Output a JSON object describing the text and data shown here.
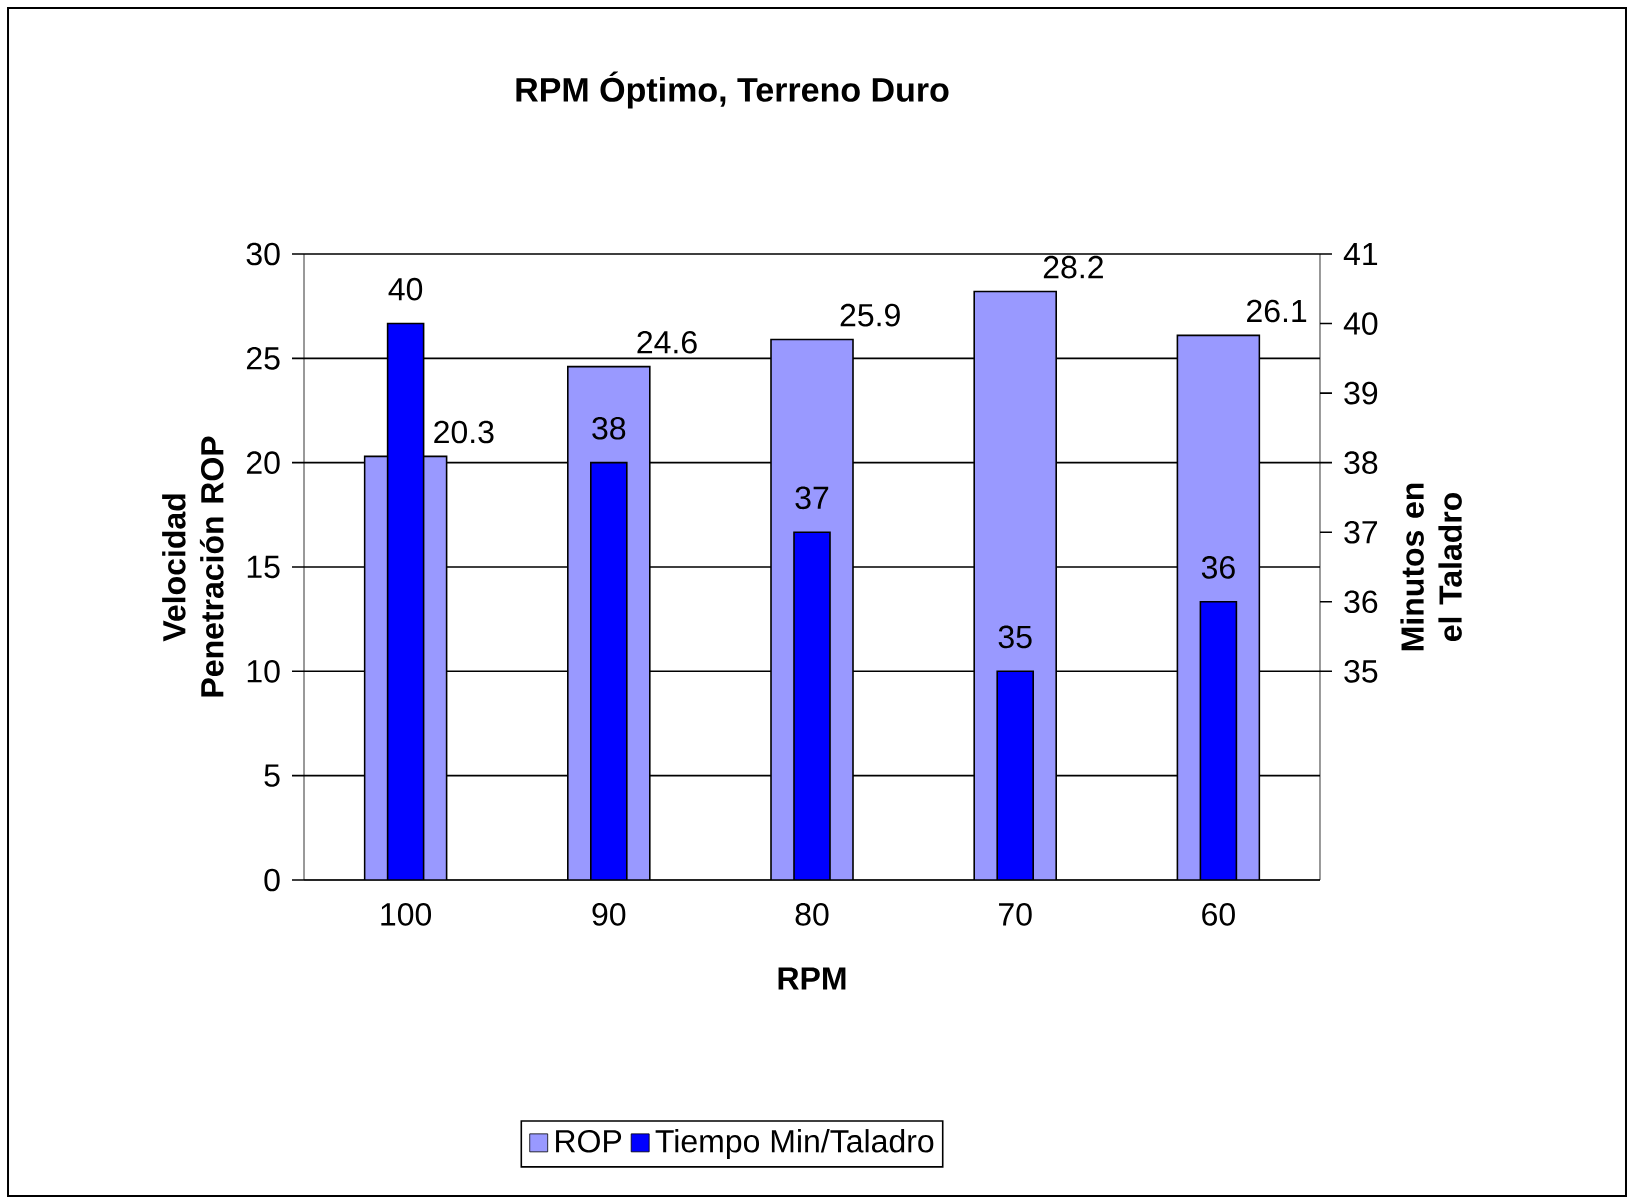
{
  "chart_data": {
    "type": "bar",
    "title": "RPM Óptimo, Terreno Duro",
    "xlabel": "RPM",
    "ylabel": "Velocidad Penetración ROP",
    "y2label": "Minutos en el Taladro",
    "categories": [
      "100",
      "90",
      "80",
      "70",
      "60"
    ],
    "series": [
      {
        "name": "ROP",
        "color": "#9999ff",
        "values": [
          20.3,
          24.6,
          25.9,
          28.2,
          26.1
        ]
      },
      {
        "name": "Tiempo Min/Taladro",
        "color": "#0000ff",
        "values": [
          40,
          38,
          37,
          35,
          36
        ],
        "axis": "y2"
      }
    ],
    "ylim": [
      0,
      30
    ],
    "yticks": [
      0,
      5,
      10,
      15,
      20,
      25,
      30
    ],
    "y2lim": [
      32,
      41
    ],
    "y2ticks": [
      35,
      36,
      37,
      38,
      39,
      40,
      41
    ],
    "grid": "y",
    "legend": "bottom",
    "data_labels": true
  }
}
